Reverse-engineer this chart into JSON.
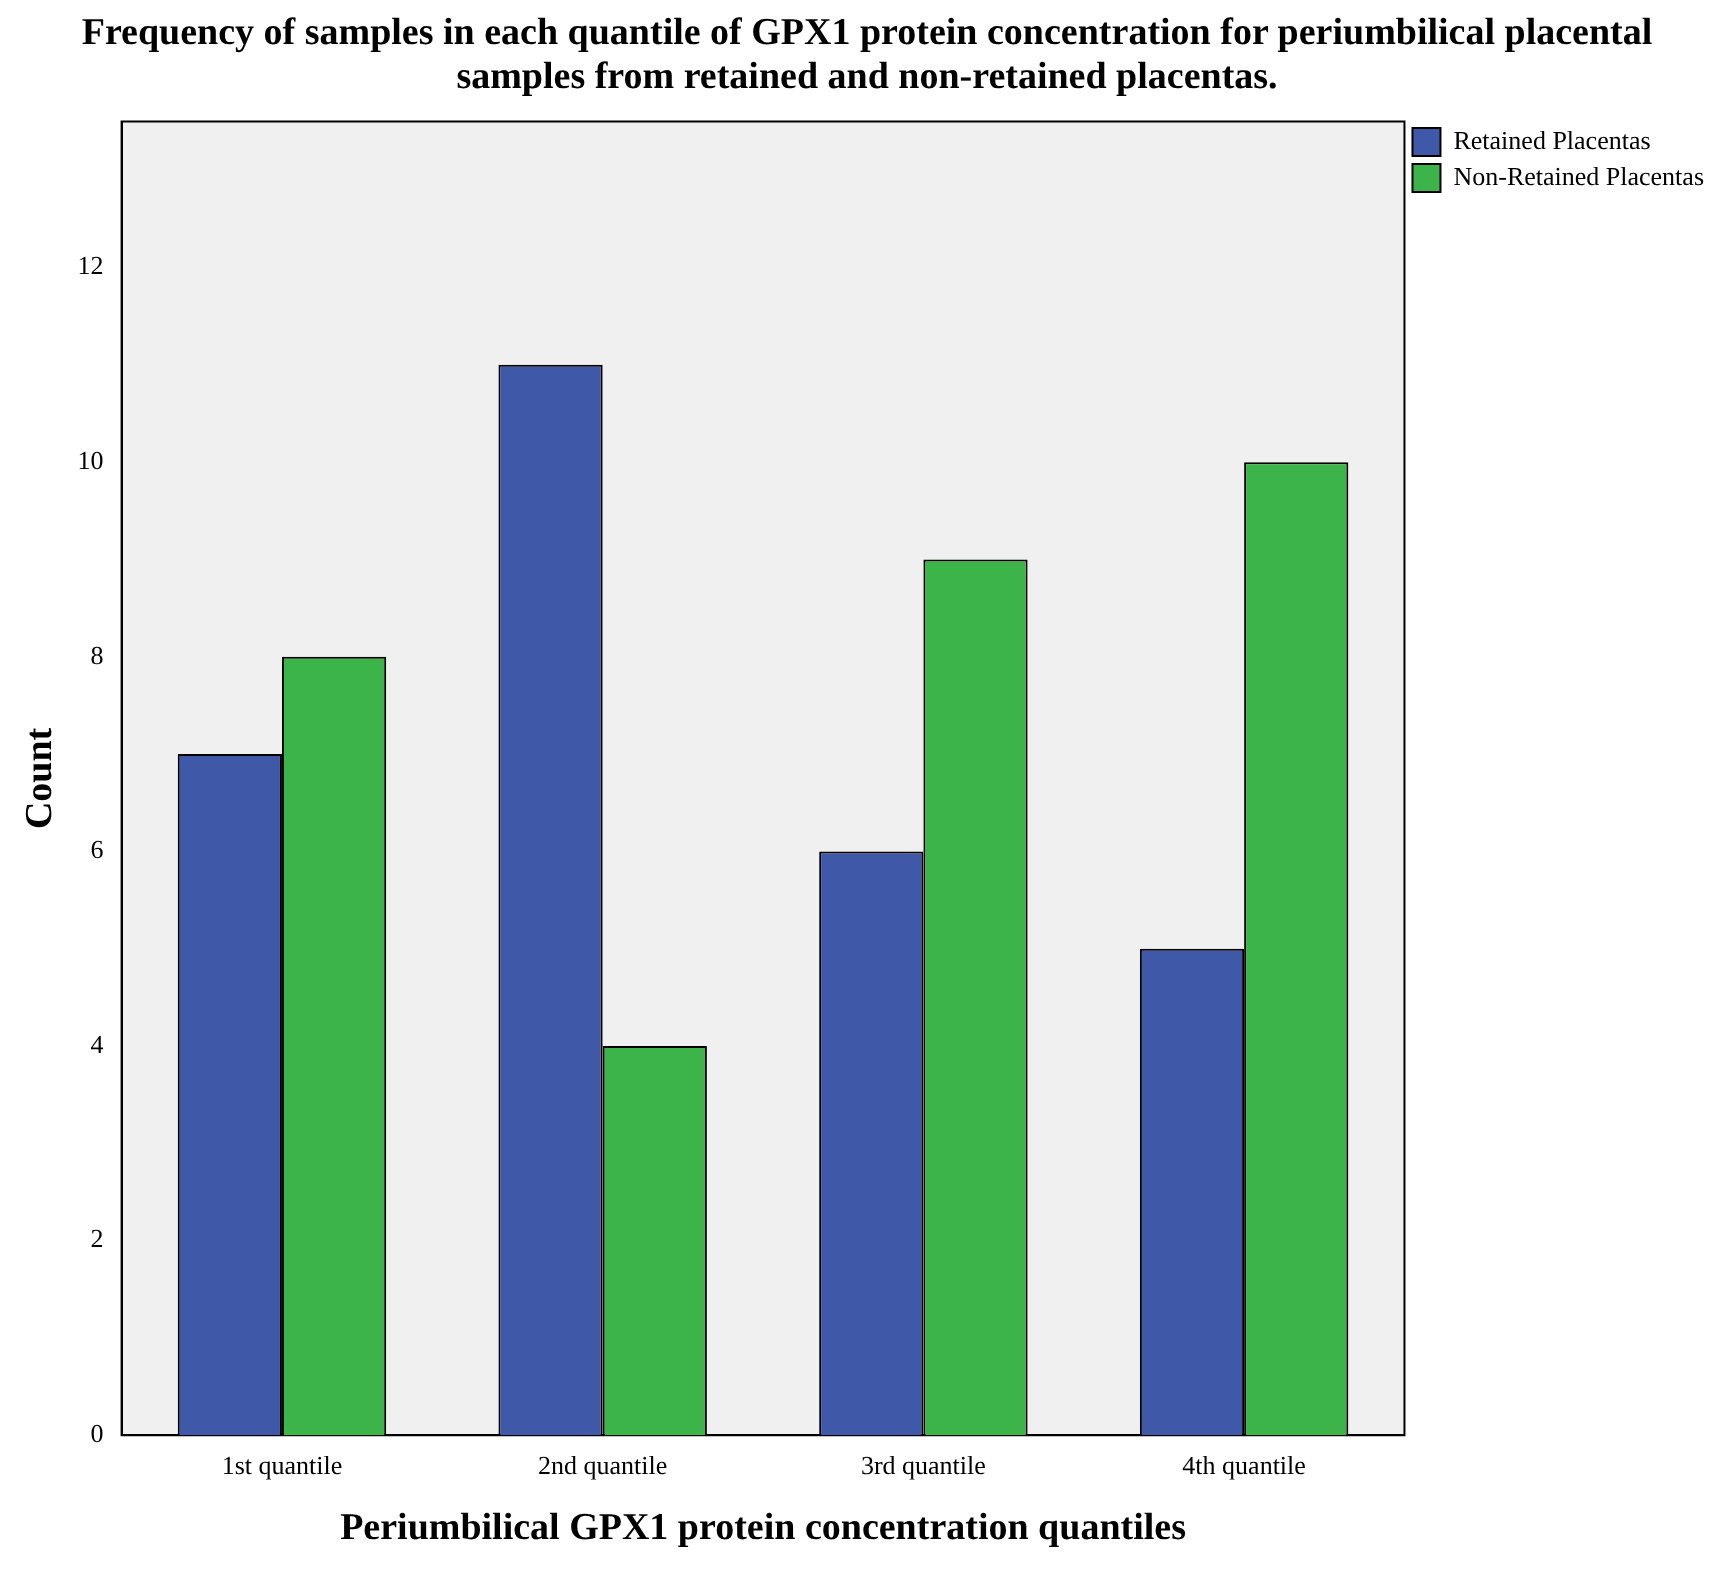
{
  "chart_data": {
    "type": "bar",
    "title": "Frequency of samples in each quantile of GPX1 protein concentration for periumbilical placental samples from retained and non-retained placentas.",
    "xlabel": "Periumbilical GPX1 protein concentration quantiles",
    "ylabel": "Count",
    "categories": [
      "1st quantile",
      "2nd quantile",
      "3rd quantile",
      "4th quantile"
    ],
    "series": [
      {
        "name": "Retained Placentas",
        "color": "#3f58a8",
        "values": [
          7,
          11,
          6,
          5
        ]
      },
      {
        "name": "Non-Retained Placentas",
        "color": "#3cb44a",
        "values": [
          8,
          4,
          9,
          10
        ]
      }
    ],
    "ylim": [
      0,
      13.5
    ],
    "yticks": [
      0,
      2,
      4,
      6,
      8,
      10,
      12
    ],
    "grid": false,
    "legend": "top right"
  }
}
